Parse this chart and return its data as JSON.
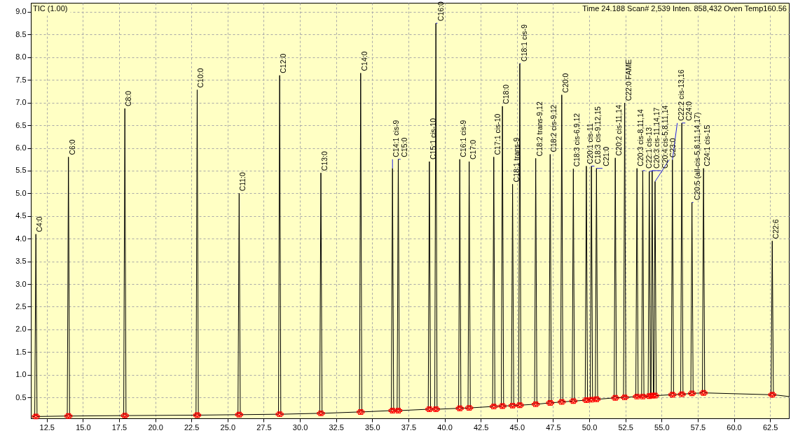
{
  "chart_data": {
    "type": "line",
    "annotations": [
      "TIC (1.00)",
      "Time   24.188    Scan#  2,539    Inten.            858,432    Oven Temp160.56",
      {
        "text": "C4:0",
        "x": 11.75,
        "y": 4.1
      },
      {
        "text": "C6:0",
        "x": 14.0,
        "y": 5.8
      },
      {
        "text": "C8:0",
        "x": 17.9,
        "y": 6.87
      },
      {
        "text": "C10:0",
        "x": 22.9,
        "y": 7.28
      },
      {
        "text": "C11:0",
        "x": 25.8,
        "y": 5.0
      },
      {
        "text": "C12:0",
        "x": 28.6,
        "y": 7.6
      },
      {
        "text": "C13:0",
        "x": 31.45,
        "y": 5.45
      },
      {
        "text": "C14:0",
        "x": 34.2,
        "y": 7.65
      },
      {
        "text": "C14:1 cis-9",
        "x": 36.4,
        "y": 5.55
      },
      {
        "text": "C15:0",
        "x": 36.8,
        "y": 5.75
      },
      {
        "text": "C15:1 cis-10",
        "x": 38.95,
        "y": 5.7
      },
      {
        "text": "C16:0",
        "x": 39.4,
        "y": 8.75
      },
      {
        "text": "C16:1 cis-9",
        "x": 41.05,
        "y": 5.75
      },
      {
        "text": "C17:0",
        "x": 41.7,
        "y": 5.7
      },
      {
        "text": "C17:1 cis-10",
        "x": 43.4,
        "y": 5.8
      },
      {
        "text": "C18:0",
        "x": 44.0,
        "y": 6.92
      },
      {
        "text": "C18:1 trans-9",
        "x": 44.7,
        "y": 5.2
      },
      {
        "text": "C18:1 cis-9",
        "x": 45.2,
        "y": 7.86
      },
      {
        "text": "C18:2 trans-9,12",
        "x": 46.3,
        "y": 5.77
      },
      {
        "text": "C18:2 cis-9,12",
        "x": 47.3,
        "y": 5.86
      },
      {
        "text": "C20:0",
        "x": 48.1,
        "y": 7.17
      },
      {
        "text": "C18:3 cis-6,9,12",
        "x": 48.9,
        "y": 5.54
      },
      {
        "text": "C20:1 cis-11",
        "x": 49.8,
        "y": 5.6
      },
      {
        "text": "C18:3 cis-9,12,15",
        "x": 50.15,
        "y": 5.6
      },
      {
        "text": "C21:0",
        "x": 50.5,
        "y": 5.55
      },
      {
        "text": "C20:2 cis-11,14",
        "x": 51.8,
        "y": 5.78
      },
      {
        "text": "C22:0 FAME",
        "x": 52.45,
        "y": 6.99
      },
      {
        "text": "C20:3 cis-8,11,14",
        "x": 53.3,
        "y": 5.55
      },
      {
        "text": "C22:1 cis-13",
        "x": 53.7,
        "y": 5.5
      },
      {
        "text": "C20:3 cis-11,14,17",
        "x": 54.15,
        "y": 5.48
      },
      {
        "text": "C20:4 cis-5,8,11,14",
        "x": 54.35,
        "y": 5.5
      },
      {
        "text": "C23:0",
        "x": 54.55,
        "y": 5.26
      },
      {
        "text": "C22:2 cis-13,16",
        "x": 55.75,
        "y": 5.74
      },
      {
        "text": "C24:0",
        "x": 56.4,
        "y": 6.55
      },
      {
        "text": "C20:5 (all-cis-5,8,11,14,17)",
        "x": 57.1,
        "y": 4.8
      },
      {
        "text": "C24:1 cis-15",
        "x": 57.9,
        "y": 5.55
      },
      {
        "text": "C22:6",
        "x": 62.65,
        "y": 3.95
      }
    ],
    "series": [
      {
        "type": "line",
        "color": "#000000",
        "x": [
          11.5,
          11.67,
          11.75,
          11.83,
          13.92,
          14.0,
          14.08,
          17.82,
          17.9,
          17.98,
          22.82,
          22.9,
          22.98,
          25.72,
          25.8,
          25.88,
          28.52,
          28.6,
          28.68,
          31.37,
          31.45,
          31.53,
          34.12,
          34.2,
          34.28,
          36.32,
          36.4,
          36.48,
          36.72,
          36.8,
          36.88,
          38.87,
          38.95,
          39.03,
          39.32,
          39.4,
          39.48,
          40.97,
          41.05,
          41.13,
          41.62,
          41.7,
          41.78,
          43.32,
          43.4,
          43.48,
          43.92,
          44.0,
          44.08,
          44.62,
          44.7,
          44.78,
          45.12,
          45.2,
          45.28,
          46.22,
          46.3,
          46.38,
          47.22,
          47.3,
          47.38,
          48.02,
          48.1,
          48.18,
          48.82,
          48.9,
          48.98,
          49.72,
          49.8,
          49.88,
          50.07,
          50.15,
          50.23,
          50.42,
          50.5,
          50.58,
          51.72,
          51.8,
          51.88,
          52.37,
          52.45,
          52.53,
          53.22,
          53.3,
          53.38,
          53.62,
          53.7,
          53.78,
          54.07,
          54.15,
          54.23,
          54.27,
          54.35,
          54.43,
          54.47,
          54.55,
          54.63,
          55.67,
          55.75,
          55.83,
          56.32,
          56.4,
          56.48,
          57.02,
          57.1,
          57.18,
          57.82,
          57.9,
          57.98,
          62.57,
          62.65,
          62.73,
          63.8
        ],
        "values": [
          0.08,
          0.08,
          4.1,
          0.08,
          0.09,
          5.8,
          0.09,
          0.1,
          6.87,
          0.1,
          0.11,
          7.28,
          0.11,
          0.12,
          5.0,
          0.12,
          0.13,
          7.6,
          0.13,
          0.15,
          5.45,
          0.15,
          0.18,
          7.65,
          0.18,
          0.21,
          5.55,
          0.21,
          0.21,
          5.75,
          0.21,
          0.24,
          5.7,
          0.24,
          0.24,
          8.75,
          0.24,
          0.26,
          5.75,
          0.26,
          0.27,
          5.7,
          0.27,
          0.3,
          5.8,
          0.3,
          0.31,
          6.92,
          0.31,
          0.32,
          5.2,
          0.32,
          0.33,
          7.86,
          0.33,
          0.35,
          5.77,
          0.35,
          0.38,
          5.86,
          0.38,
          0.4,
          7.17,
          0.4,
          0.42,
          5.54,
          0.42,
          0.44,
          5.6,
          0.44,
          0.45,
          5.6,
          0.45,
          0.46,
          5.55,
          0.46,
          0.49,
          5.78,
          0.49,
          0.5,
          6.99,
          0.5,
          0.52,
          5.55,
          0.52,
          0.52,
          5.5,
          0.52,
          0.53,
          5.48,
          0.53,
          0.54,
          5.5,
          0.54,
          0.54,
          5.26,
          0.54,
          0.56,
          5.74,
          0.56,
          0.57,
          6.55,
          0.57,
          0.59,
          4.8,
          0.59,
          0.6,
          5.55,
          0.6,
          0.56,
          3.95,
          0.56,
          0.52
        ]
      },
      {
        "type": "scatter",
        "color": "#ff0000",
        "marker": "cross",
        "x": [
          11.67,
          11.83,
          13.92,
          14.08,
          17.82,
          17.98,
          22.82,
          22.98,
          25.72,
          25.88,
          28.52,
          28.68,
          31.37,
          31.53,
          34.12,
          34.28,
          36.32,
          36.48,
          36.72,
          36.88,
          38.87,
          39.03,
          39.32,
          39.48,
          40.97,
          41.13,
          41.62,
          41.78,
          43.32,
          43.48,
          43.92,
          44.08,
          44.62,
          44.78,
          45.12,
          45.28,
          46.22,
          46.38,
          47.22,
          47.38,
          48.02,
          48.18,
          48.82,
          48.98,
          49.72,
          49.88,
          50.07,
          50.23,
          50.42,
          50.58,
          51.72,
          51.88,
          52.37,
          52.53,
          53.22,
          53.38,
          53.62,
          53.78,
          54.07,
          54.23,
          54.27,
          54.43,
          54.47,
          54.63,
          55.67,
          55.83,
          56.32,
          56.48,
          57.02,
          57.18,
          57.82,
          57.98,
          62.57,
          62.73
        ],
        "values": [
          0.08,
          0.08,
          0.09,
          0.09,
          0.1,
          0.1,
          0.11,
          0.11,
          0.12,
          0.12,
          0.13,
          0.13,
          0.15,
          0.15,
          0.18,
          0.18,
          0.21,
          0.21,
          0.21,
          0.21,
          0.24,
          0.24,
          0.24,
          0.24,
          0.26,
          0.26,
          0.27,
          0.27,
          0.3,
          0.3,
          0.31,
          0.31,
          0.32,
          0.32,
          0.33,
          0.33,
          0.35,
          0.35,
          0.38,
          0.38,
          0.4,
          0.4,
          0.42,
          0.42,
          0.44,
          0.44,
          0.45,
          0.45,
          0.46,
          0.46,
          0.49,
          0.49,
          0.5,
          0.5,
          0.52,
          0.52,
          0.52,
          0.52,
          0.53,
          0.53,
          0.54,
          0.54,
          0.54,
          0.54,
          0.56,
          0.56,
          0.57,
          0.57,
          0.59,
          0.59,
          0.6,
          0.6,
          0.56,
          0.56
        ]
      }
    ],
    "xlim": [
      11.4,
      63.8
    ],
    "xticks": [
      12.5,
      {
        "value": 15,
        "label": "15.0"
      },
      17.5,
      {
        "value": 20,
        "label": "20.0"
      },
      22.5,
      {
        "value": 25,
        "label": "25.0"
      },
      27.5,
      {
        "value": 30,
        "label": "30.0"
      },
      32.5,
      {
        "value": 35,
        "label": "35.0"
      },
      37.5,
      {
        "value": 40,
        "label": "40.0"
      },
      42.5,
      {
        "value": 45,
        "label": "45.0"
      },
      47.5,
      {
        "value": 50,
        "label": "50.0"
      },
      52.5,
      {
        "value": 55,
        "label": "55.0"
      },
      57.5,
      {
        "value": 60,
        "label": "60.0"
      },
      62.5
    ],
    "ylim": [
      0.04,
      9.2
    ],
    "yticks": [
      0.5,
      {
        "value": 1,
        "label": "1.0"
      },
      1.5,
      {
        "value": 2,
        "label": "2.0"
      },
      2.5,
      {
        "value": 3,
        "label": "3.0"
      },
      3.5,
      {
        "value": 4,
        "label": "4.0"
      },
      4.5,
      {
        "value": 5,
        "label": "5.0"
      },
      5.5,
      {
        "value": 6,
        "label": "6.0"
      },
      6.5,
      {
        "value": 7,
        "label": "7.0"
      },
      7.5,
      {
        "value": 8,
        "label": "8.0"
      },
      8.5,
      {
        "value": 9,
        "label": "9.0"
      }
    ],
    "grid": true
  }
}
